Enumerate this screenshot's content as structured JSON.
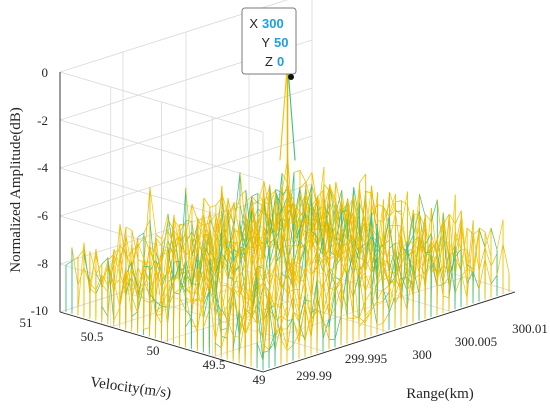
{
  "chart_data": {
    "type": "surface-3d-waterfall",
    "zlabel": "Normalized Amplitude(dB)",
    "xlabel": "Range(km)",
    "ylabel": "Velocity(m/s)",
    "z_ticks": [
      "0",
      "-2",
      "-4",
      "-6",
      "-8",
      "-10"
    ],
    "range_ticks": [
      "299.99",
      "299.995",
      "300",
      "300.005",
      "300.01"
    ],
    "velocity_ticks": [
      "51",
      "50.5",
      "50",
      "49.5",
      "49"
    ],
    "zlim": [
      -10,
      0
    ],
    "range_lim": [
      299.99,
      300.01
    ],
    "velocity_lim": [
      49,
      51
    ],
    "grid": true,
    "colors": {
      "primary": "#e8b800",
      "secondary": "#3fbf7f",
      "tertiary": "#f0c400"
    },
    "peak": {
      "range_km": 300,
      "velocity_mps": 50,
      "amplitude_db": 0
    },
    "noise_floor_db": [
      -10,
      -6.5
    ],
    "datatip": {
      "x_key": "X",
      "x_val": "300",
      "y_key": "Y",
      "y_val": "50",
      "z_key": "Z",
      "z_val": "0"
    }
  }
}
